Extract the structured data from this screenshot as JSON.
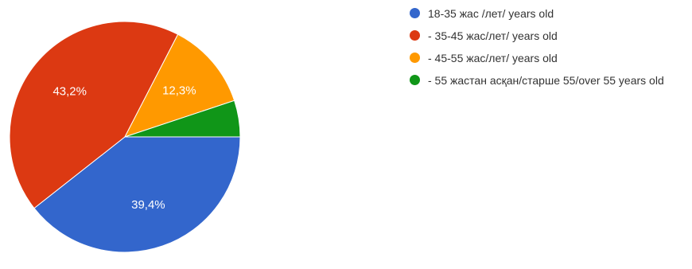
{
  "chart_data": {
    "type": "pie",
    "slices": [
      {
        "label": "18-35 жас /лет/ years old",
        "value": 39.4,
        "data_label": "39,4%",
        "color": "#3366cc"
      },
      {
        "label": "- 35-45 жас/лет/ years old",
        "value": 43.2,
        "data_label": "43,2%",
        "color": "#dc3912"
      },
      {
        "label": "- 45-55 жас/лет/ years old",
        "value": 12.3,
        "data_label": "12,3%",
        "color": "#ff9900"
      },
      {
        "label": "- 55 жастан асқан/старше 55/over 55 years old",
        "value": 5.1,
        "data_label": "",
        "color": "#109618"
      }
    ],
    "legend_position": "right",
    "start_angle": "3 o'clock, clockwise"
  }
}
